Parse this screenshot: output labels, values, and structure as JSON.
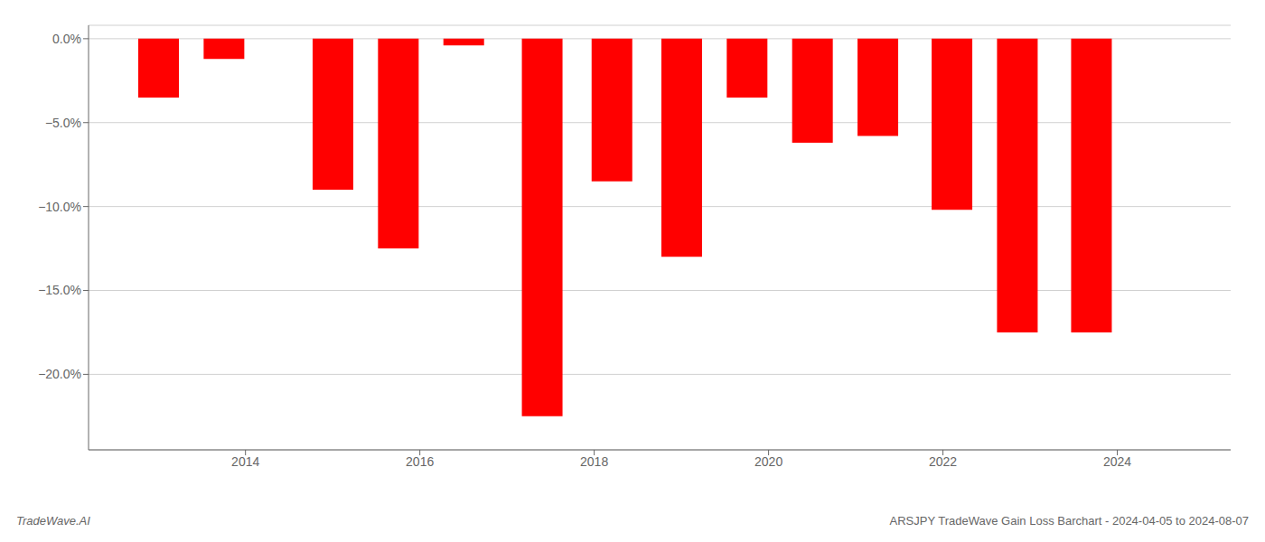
{
  "chart_data": {
    "type": "bar",
    "x": [
      2013,
      2013.75,
      2015,
      2015.75,
      2016.5,
      2017.4,
      2018.2,
      2019,
      2019.75,
      2020.5,
      2021.25,
      2022.1,
      2022.85,
      2023.7
    ],
    "values": [
      -3.5,
      -1.2,
      -9.0,
      -12.5,
      -0.4,
      -22.5,
      -8.5,
      -13.0,
      -3.5,
      -6.2,
      -5.8,
      -10.2,
      -17.5,
      -17.5
    ],
    "color": "#ff0000",
    "xlim": [
      2012.2,
      2025.3
    ],
    "xticks": [
      2014,
      2016,
      2018,
      2020,
      2022,
      2024
    ],
    "ylim": [
      -24.5,
      0.8
    ],
    "yticks": [
      {
        "value": 0.0,
        "label": "0.0%"
      },
      {
        "value": -5.0,
        "label": "−5.0%"
      },
      {
        "value": -10.0,
        "label": "−10.0%"
      },
      {
        "value": -15.0,
        "label": "−15.0%"
      },
      {
        "value": -20.0,
        "label": "−20.0%"
      }
    ],
    "grid": true,
    "annotations": [
      "TradeWave.AI",
      "ARSJPY TradeWave Gain Loss Barchart - 2024-04-05 to 2024-08-07"
    ]
  }
}
